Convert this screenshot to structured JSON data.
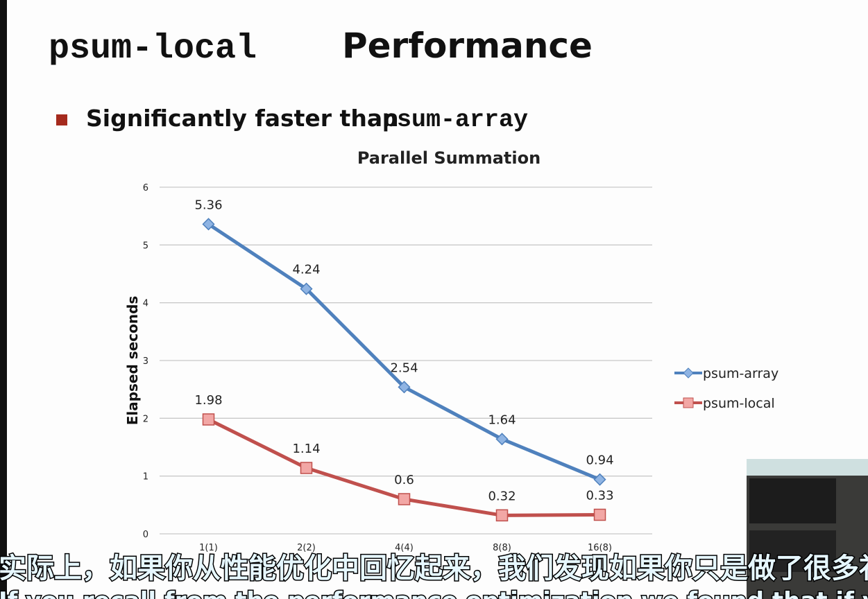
{
  "slide": {
    "title_code": "psum-local",
    "title_rest": "Performance",
    "bullet_text": "Significantly faster than",
    "bullet_code": "psum-array"
  },
  "chart_data": {
    "type": "line",
    "title": "Parallel Summation",
    "y_label": "Elapsed seconds",
    "categories": [
      "1(1)",
      "2(2)",
      "4(4)",
      "8(8)",
      "16(8)"
    ],
    "series": [
      {
        "name": "psum-array",
        "color": "#4f81bd",
        "marker": "diamond",
        "values": [
          5.36,
          4.24,
          2.54,
          1.64,
          0.94
        ]
      },
      {
        "name": "psum-local",
        "color": "#c0504d",
        "marker": "square",
        "values": [
          1.98,
          1.14,
          0.6,
          0.32,
          0.33
        ]
      }
    ],
    "ylim": [
      0,
      6
    ],
    "yticks": [
      0,
      1,
      2,
      3,
      4,
      5,
      6
    ],
    "grid": true,
    "legend": "right"
  },
  "subtitles": {
    "zh": "实际上，如果你从性能优化中回忆起来，我们发现如果你只是做了很多补",
    "en": "If you recall from the performance optimization we found that if you're just doing a lot"
  }
}
